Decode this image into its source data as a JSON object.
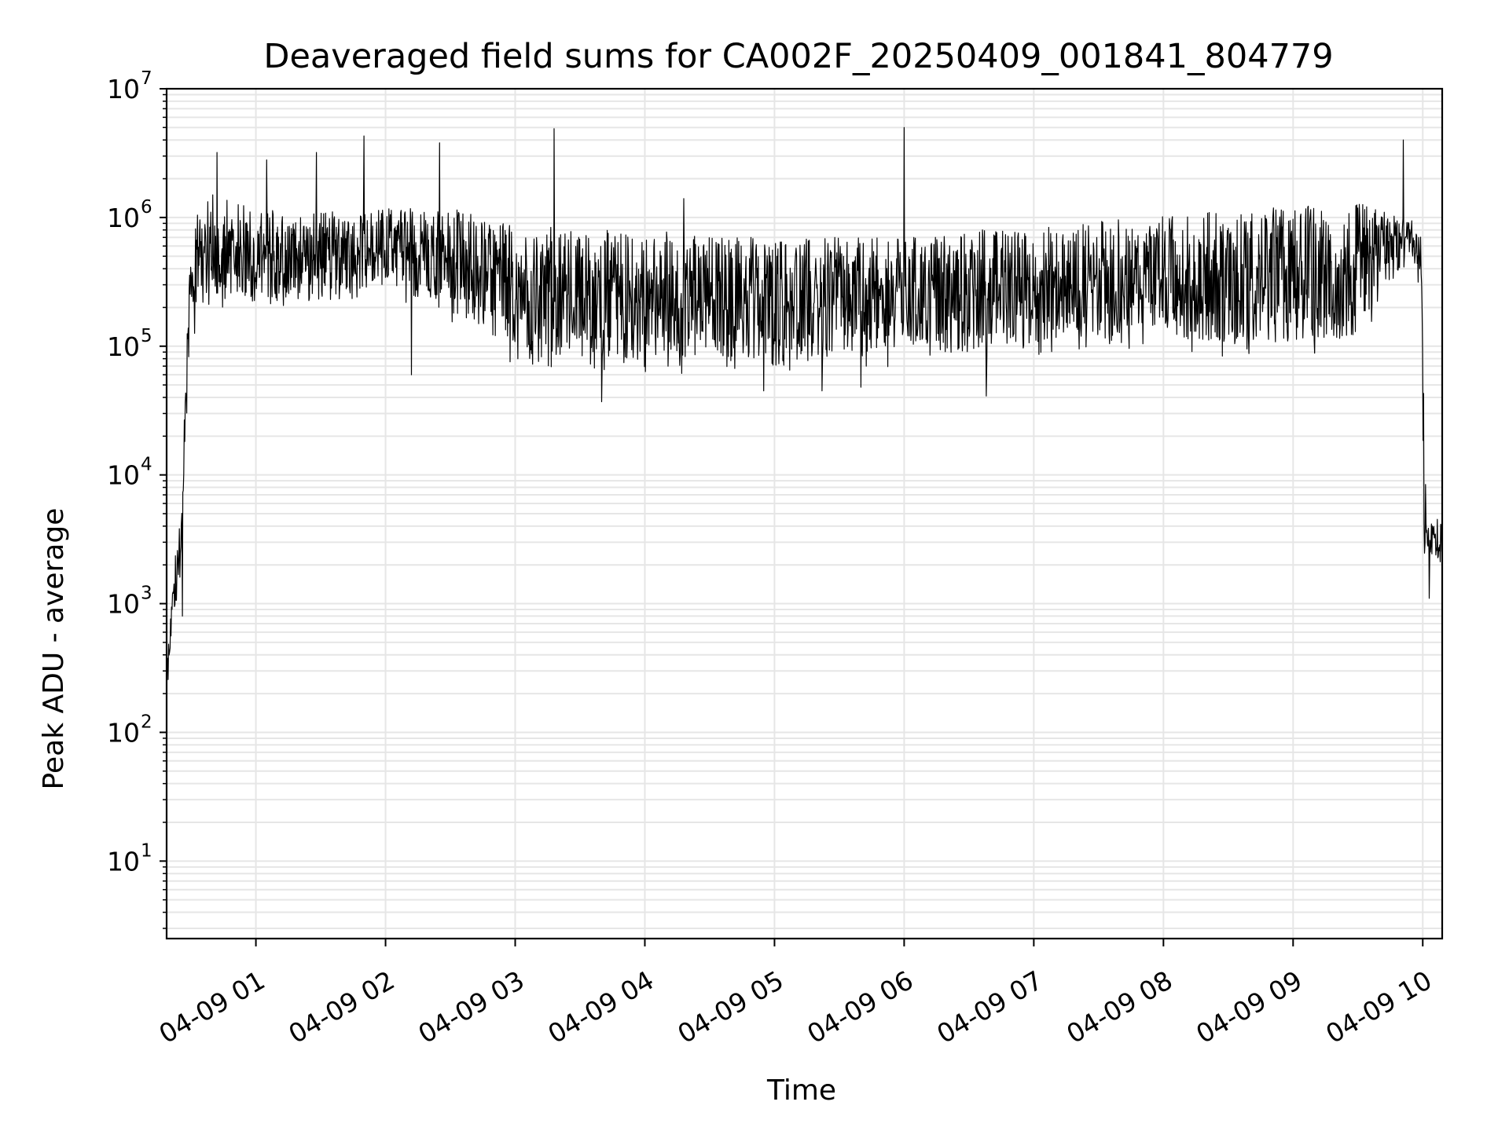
{
  "chart_data": {
    "type": "line",
    "title": "Deaveraged field sums for CA002F_20250409_001841_804779",
    "xlabel": "Time",
    "ylabel": "Peak ADU - average",
    "yscale": "log",
    "ylim": [
      2.5,
      10000000
    ],
    "xlim": [
      "2025-04-09 00:18:41",
      "2025-04-09 10:09:00"
    ],
    "grid": true,
    "line_color": "#000000",
    "grid_color": "#e6e6e6",
    "x_ticks": [
      {
        "value": "2025-04-09 01:00",
        "label": "04-09 01"
      },
      {
        "value": "2025-04-09 02:00",
        "label": "04-09 02"
      },
      {
        "value": "2025-04-09 03:00",
        "label": "04-09 03"
      },
      {
        "value": "2025-04-09 04:00",
        "label": "04-09 04"
      },
      {
        "value": "2025-04-09 05:00",
        "label": "04-09 05"
      },
      {
        "value": "2025-04-09 06:00",
        "label": "04-09 06"
      },
      {
        "value": "2025-04-09 07:00",
        "label": "04-09 07"
      },
      {
        "value": "2025-04-09 08:00",
        "label": "04-09 08"
      },
      {
        "value": "2025-04-09 09:00",
        "label": "04-09 09"
      },
      {
        "value": "2025-04-09 10:00",
        "label": "04-09 10"
      }
    ],
    "y_ticks": [
      {
        "value": 10,
        "base": "10",
        "exp": "1"
      },
      {
        "value": 100,
        "base": "10",
        "exp": "2"
      },
      {
        "value": 1000,
        "base": "10",
        "exp": "3"
      },
      {
        "value": 10000,
        "base": "10",
        "exp": "4"
      },
      {
        "value": 100000,
        "base": "10",
        "exp": "5"
      },
      {
        "value": 1000000,
        "base": "10",
        "exp": "6"
      },
      {
        "value": 10000000,
        "base": "10",
        "exp": "7"
      }
    ],
    "series": [
      {
        "envelope": [
          {
            "x": "2025-04-09 00:18:41",
            "low": 160,
            "high": 400
          },
          {
            "x": "2025-04-09 00:20:30",
            "low": 450,
            "high": 900
          },
          {
            "x": "2025-04-09 00:23:00",
            "low": 800,
            "high": 3000
          },
          {
            "x": "2025-04-09 00:25:30",
            "low": 1500,
            "high": 5000
          },
          {
            "x": "2025-04-09 00:27:00",
            "low": 8000,
            "high": 33000
          },
          {
            "x": "2025-04-09 00:29:00",
            "low": 60000,
            "high": 450000
          },
          {
            "x": "2025-04-09 00:31:30",
            "low": 90000,
            "high": 800000
          },
          {
            "x": "2025-04-09 00:35:00",
            "low": 200000,
            "high": 1600000
          },
          {
            "x": "2025-04-09 01:00:00",
            "low": 180000,
            "high": 1200000
          },
          {
            "x": "2025-04-09 01:30:00",
            "low": 200000,
            "high": 1100000
          },
          {
            "x": "2025-04-09 02:00:00",
            "low": 250000,
            "high": 1200000
          },
          {
            "x": "2025-04-09 02:30:00",
            "low": 150000,
            "high": 1200000
          },
          {
            "x": "2025-04-09 03:00:00",
            "low": 70000,
            "high": 900000
          },
          {
            "x": "2025-04-09 03:30:00",
            "low": 60000,
            "high": 800000
          },
          {
            "x": "2025-04-09 04:00:00",
            "low": 60000,
            "high": 800000
          },
          {
            "x": "2025-04-09 04:30:00",
            "low": 60000,
            "high": 750000
          },
          {
            "x": "2025-04-09 05:00:00",
            "low": 60000,
            "high": 700000
          },
          {
            "x": "2025-04-09 05:30:00",
            "low": 60000,
            "high": 700000
          },
          {
            "x": "2025-04-09 06:00:00",
            "low": 70000,
            "high": 700000
          },
          {
            "x": "2025-04-09 06:30:00",
            "low": 70000,
            "high": 800000
          },
          {
            "x": "2025-04-09 07:00:00",
            "low": 80000,
            "high": 850000
          },
          {
            "x": "2025-04-09 07:30:00",
            "low": 90000,
            "high": 950000
          },
          {
            "x": "2025-04-09 08:00:00",
            "low": 100000,
            "high": 1050000
          },
          {
            "x": "2025-04-09 08:30:00",
            "low": 80000,
            "high": 1150000
          },
          {
            "x": "2025-04-09 09:00:00",
            "low": 80000,
            "high": 1250000
          },
          {
            "x": "2025-04-09 09:30:00",
            "low": 90000,
            "high": 1300000
          },
          {
            "x": "2025-04-09 09:55:00",
            "low": 500000,
            "high": 1000000
          },
          {
            "x": "2025-04-09 09:59:30",
            "low": 200000,
            "high": 700000
          },
          {
            "x": "2025-04-09 10:00:30",
            "low": 2000,
            "high": 30000
          },
          {
            "x": "2025-04-09 10:02:00",
            "low": 2500,
            "high": 4000
          },
          {
            "x": "2025-04-09 10:09:00",
            "low": 1800,
            "high": 5000
          }
        ],
        "spikes": [
          {
            "x": "2025-04-09 00:42:00",
            "value": 3200000
          },
          {
            "x": "2025-04-09 01:05:00",
            "value": 2800000
          },
          {
            "x": "2025-04-09 01:28:00",
            "value": 3200000
          },
          {
            "x": "2025-04-09 01:50:00",
            "value": 4300000
          },
          {
            "x": "2025-04-09 02:25:00",
            "value": 3800000
          },
          {
            "x": "2025-04-09 03:18:00",
            "value": 4900000
          },
          {
            "x": "2025-04-09 04:18:00",
            "value": 1400000
          },
          {
            "x": "2025-04-09 06:00:00",
            "value": 5000000
          },
          {
            "x": "2025-04-09 09:51:00",
            "value": 4000000
          }
        ],
        "dips": [
          {
            "x": "2025-04-09 02:12:00",
            "value": 60000
          },
          {
            "x": "2025-04-09 03:40:00",
            "value": 37000
          },
          {
            "x": "2025-04-09 04:55:00",
            "value": 45000
          },
          {
            "x": "2025-04-09 05:22:00",
            "value": 45000
          },
          {
            "x": "2025-04-09 05:40:00",
            "value": 48000
          },
          {
            "x": "2025-04-09 06:38:00",
            "value": 41000
          },
          {
            "x": "2025-04-09 00:26:00",
            "value": 800
          },
          {
            "x": "2025-04-09 10:03:00",
            "value": 1100
          }
        ]
      }
    ]
  }
}
